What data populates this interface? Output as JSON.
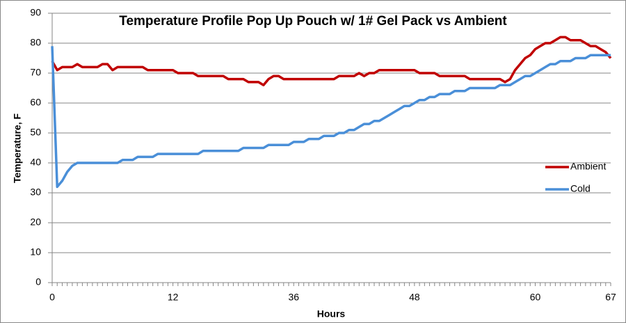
{
  "chart_data": {
    "type": "line",
    "title": "Temperature Profile Pop Up Pouch w/ 1# Gel Pack vs Ambient",
    "x_label": "Hours",
    "y_label": "Temperature, F",
    "categories": [
      "0",
      null,
      null,
      null,
      null,
      null,
      null,
      null,
      null,
      null,
      null,
      null,
      null,
      null,
      null,
      null,
      null,
      null,
      null,
      null,
      null,
      null,
      null,
      null,
      "12",
      null,
      null,
      null,
      null,
      null,
      null,
      null,
      null,
      null,
      null,
      null,
      null,
      null,
      null,
      null,
      null,
      null,
      null,
      null,
      null,
      null,
      null,
      null,
      "36",
      null,
      null,
      null,
      null,
      null,
      null,
      null,
      null,
      null,
      null,
      null,
      null,
      null,
      null,
      null,
      null,
      null,
      null,
      null,
      null,
      null,
      null,
      null,
      "48",
      null,
      null,
      null,
      null,
      null,
      null,
      null,
      null,
      null,
      null,
      null,
      null,
      null,
      null,
      null,
      null,
      null,
      null,
      null,
      null,
      null,
      null,
      null,
      "60",
      null,
      null,
      null,
      null,
      null,
      null,
      null,
      null,
      null,
      null,
      null,
      null,
      null,
      null,
      "67"
    ],
    "series": [
      {
        "name": "Ambient",
        "color": "#c00000",
        "values": [
          74,
          71,
          72,
          72,
          72,
          73,
          72,
          72,
          72,
          72,
          73,
          73,
          71,
          72,
          72,
          72,
          72,
          72,
          72,
          71,
          71,
          71,
          71,
          71,
          71,
          70,
          70,
          70,
          70,
          69,
          69,
          69,
          69,
          69,
          69,
          68,
          68,
          68,
          68,
          67,
          67,
          67,
          66,
          68,
          69,
          69,
          68,
          68,
          68,
          68,
          68,
          68,
          68,
          68,
          68,
          68,
          68,
          69,
          69,
          69,
          69,
          70,
          69,
          70,
          70,
          71,
          71,
          71,
          71,
          71,
          71,
          71,
          71,
          70,
          70,
          70,
          70,
          69,
          69,
          69,
          69,
          69,
          69,
          68,
          68,
          68,
          68,
          68,
          68,
          68,
          67,
          68,
          71,
          73,
          75,
          76,
          78,
          79,
          80,
          80,
          81,
          82,
          82,
          81,
          81,
          81,
          80,
          79,
          79,
          78,
          77,
          75
        ]
      },
      {
        "name": "Cold",
        "color": "#4a8fd8",
        "values": [
          79,
          32,
          34,
          37,
          39,
          40,
          40,
          40,
          40,
          40,
          40,
          40,
          40,
          40,
          41,
          41,
          41,
          42,
          42,
          42,
          42,
          43,
          43,
          43,
          43,
          43,
          43,
          43,
          43,
          43,
          44,
          44,
          44,
          44,
          44,
          44,
          44,
          44,
          45,
          45,
          45,
          45,
          45,
          46,
          46,
          46,
          46,
          46,
          47,
          47,
          47,
          48,
          48,
          48,
          49,
          49,
          49,
          50,
          50,
          51,
          51,
          52,
          53,
          53,
          54,
          54,
          55,
          56,
          57,
          58,
          59,
          59,
          60,
          61,
          61,
          62,
          62,
          63,
          63,
          63,
          64,
          64,
          64,
          65,
          65,
          65,
          65,
          65,
          65,
          66,
          66,
          66,
          67,
          68,
          69,
          69,
          70,
          71,
          72,
          73,
          73,
          74,
          74,
          74,
          75,
          75,
          75,
          76,
          76,
          76,
          76,
          76
        ]
      }
    ],
    "ylim": [
      0,
      90
    ],
    "yticks": [
      0,
      10,
      20,
      30,
      40,
      50,
      60,
      70,
      80,
      90
    ],
    "grid": true,
    "legend": "right"
  }
}
